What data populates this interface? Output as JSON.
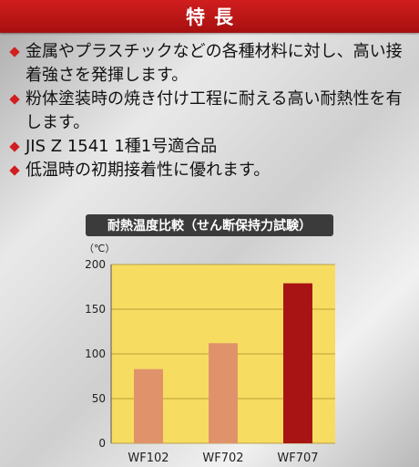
{
  "header": {
    "title": "特長"
  },
  "features": [
    "金属やプラスチックなどの各種材料に対し、高い接着強さを発揮します。",
    "粉体塗装時の焼き付け工程に耐える高い耐熱性を有します。",
    "JIS Z 1541 1種1号適合品",
    "低温時の初期接着性に優れます。"
  ],
  "colors": {
    "accent": "#d11e1e",
    "plot_bg": "#f6dd62",
    "bar_light": "#e0936b",
    "bar_dark": "#a81414"
  },
  "chart_data": {
    "type": "bar",
    "title": "耐熱温度比較（せん断保持力試験）",
    "unit": "（℃）",
    "categories": [
      "WF102",
      "WF702",
      "WF707"
    ],
    "values": [
      83,
      112,
      179
    ],
    "ylim": [
      0,
      200
    ],
    "yticks": [
      0,
      50,
      100,
      150,
      200
    ],
    "grid": true,
    "bar_colors": [
      "#e0936b",
      "#e0936b",
      "#a81414"
    ]
  }
}
